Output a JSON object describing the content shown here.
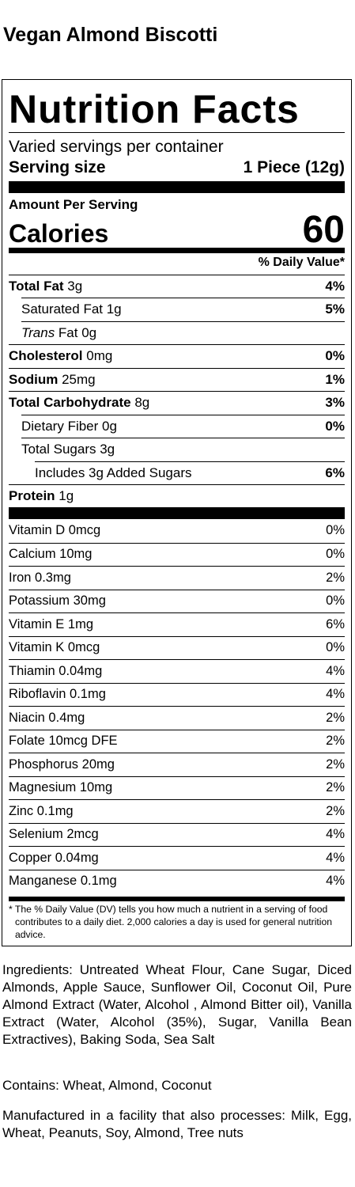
{
  "product": {
    "title": "Vegan Almond Biscotti"
  },
  "label": {
    "title": "Nutrition Facts",
    "servings_per_container": "Varied servings per container",
    "serving_size_label": "Serving size",
    "serving_size_value": "1 Piece (12g)",
    "amount_per_serving": "Amount Per Serving",
    "calories_label": "Calories",
    "calories_value": "60",
    "dv_header": "% Daily Value*",
    "nutrients": [
      {
        "name": "Total Fat",
        "amount": " 3g",
        "dv": "4%"
      },
      {
        "name": "Saturated Fat 1g",
        "dv": "5%"
      },
      {
        "name_italic": "Trans",
        "name": " Fat 0g",
        "dv": ""
      },
      {
        "name": "Cholesterol",
        "amount": " 0mg",
        "dv": "0%"
      },
      {
        "name": "Sodium",
        "amount": " 25mg",
        "dv": "1%"
      },
      {
        "name": "Total Carbohydrate",
        "amount": " 8g",
        "dv": "3%"
      },
      {
        "name": "Dietary Fiber 0g",
        "dv": "0%"
      },
      {
        "name": "Total Sugars 3g",
        "dv": ""
      },
      {
        "name": "Includes 3g Added Sugars",
        "dv": "6%"
      },
      {
        "name": "Protein",
        "amount": " 1g",
        "dv": ""
      }
    ],
    "vitamins": [
      {
        "name": "Vitamin D 0mcg",
        "dv": "0%"
      },
      {
        "name": "Calcium 10mg",
        "dv": "0%"
      },
      {
        "name": "Iron 0.3mg",
        "dv": "2%"
      },
      {
        "name": "Potassium 30mg",
        "dv": "0%"
      },
      {
        "name": "Vitamin E 1mg",
        "dv": "6%"
      },
      {
        "name": "Vitamin K 0mcg",
        "dv": "0%"
      },
      {
        "name": "Thiamin 0.04mg",
        "dv": "4%"
      },
      {
        "name": "Riboflavin 0.1mg",
        "dv": "4%"
      },
      {
        "name": "Niacin 0.4mg",
        "dv": "2%"
      },
      {
        "name": "Folate 10mcg DFE",
        "dv": "2%"
      },
      {
        "name": "Phosphorus 20mg",
        "dv": "2%"
      },
      {
        "name": "Magnesium 10mg",
        "dv": "2%"
      },
      {
        "name": "Zinc 0.1mg",
        "dv": "2%"
      },
      {
        "name": "Selenium 2mcg",
        "dv": "4%"
      },
      {
        "name": "Copper 0.04mg",
        "dv": "4%"
      },
      {
        "name": "Manganese 0.1mg",
        "dv": "4%"
      }
    ],
    "footnote": "* The % Daily Value (DV) tells you how much a nutrient in a serving of food contributes to a daily diet. 2,000 calories a day is used for general nutrition advice."
  },
  "ingredients": "Ingredients: Untreated Wheat Flour, Cane Sugar, Diced Almonds, Apple Sauce, Sunflower Oil, Coconut Oil, Pure Almond Extract (Water, Alcohol , Almond Bitter oil), Vanilla Extract (Water, Alcohol (35%), Sugar, Vanilla Bean Extractives), Baking Soda, Sea Salt",
  "contains": "Contains: Wheat, Almond, Coconut",
  "facility": "Manufactured in a facility that also processes: Milk, Egg, Wheat, Peanuts, Soy, Almond, Tree nuts"
}
